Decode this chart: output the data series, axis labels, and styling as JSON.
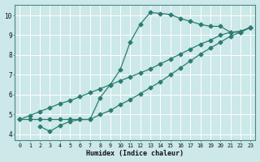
{
  "background_color": "#cce8e8",
  "grid_color": "#ffffff",
  "line_color": "#2a7d70",
  "xlabel": "Humidex (Indice chaleur)",
  "xlim": [
    -0.5,
    23.5
  ],
  "ylim": [
    3.7,
    10.55
  ],
  "xticks": [
    0,
    1,
    2,
    3,
    4,
    5,
    6,
    7,
    8,
    9,
    10,
    11,
    12,
    13,
    14,
    15,
    16,
    17,
    18,
    19,
    20,
    21,
    22,
    23
  ],
  "yticks": [
    4,
    5,
    6,
    7,
    8,
    9,
    10
  ],
  "curve1_x": [
    0,
    1,
    2,
    3,
    4,
    5,
    6,
    7,
    8,
    9,
    10,
    11,
    12,
    13,
    14,
    15,
    16,
    17,
    18,
    19,
    20,
    21,
    22,
    23
  ],
  "curve1_y": [
    4.75,
    4.75,
    4.75,
    4.75,
    4.75,
    4.75,
    4.75,
    4.75,
    5.85,
    6.5,
    7.25,
    8.65,
    9.55,
    10.15,
    10.1,
    10.05,
    9.85,
    9.7,
    9.55,
    9.45,
    9.45,
    9.15,
    9.15,
    9.4
  ],
  "curve2_x": [
    0,
    1,
    2,
    3,
    4,
    5,
    6,
    7,
    8,
    9,
    10,
    11,
    12,
    13,
    14,
    15,
    16,
    17,
    18,
    19,
    20,
    21,
    22,
    23
  ],
  "curve2_y": [
    4.75,
    4.95,
    5.15,
    5.35,
    5.55,
    5.7,
    5.9,
    6.1,
    6.3,
    6.5,
    6.7,
    6.9,
    7.1,
    7.3,
    7.55,
    7.8,
    8.05,
    8.3,
    8.55,
    8.75,
    9.0,
    9.15,
    9.2,
    9.4
  ],
  "curve3_x": [
    2,
    3,
    4,
    5,
    6,
    7,
    8,
    9,
    10,
    11,
    12,
    13,
    14,
    15,
    16,
    17,
    18,
    19,
    20,
    21,
    22,
    23
  ],
  "curve3_y": [
    4.4,
    4.15,
    4.45,
    4.65,
    4.75,
    4.75,
    5.0,
    5.2,
    5.5,
    5.75,
    6.05,
    6.35,
    6.65,
    7.0,
    7.35,
    7.7,
    8.05,
    8.35,
    8.65,
    8.95,
    9.15,
    9.4
  ]
}
